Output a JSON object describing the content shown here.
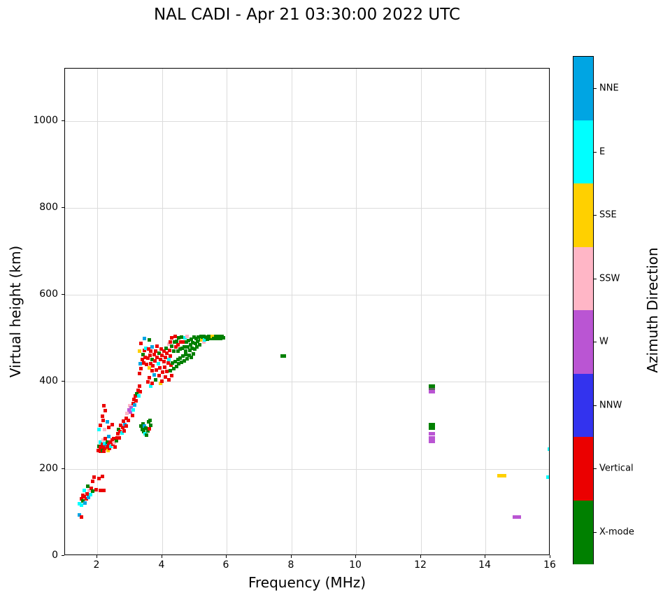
{
  "chart_data": {
    "type": "scatter",
    "title": "NAL CADI - Apr 21 03:30:00 2022 UTC",
    "xlabel": "Frequency (MHz)",
    "ylabel": "Virtual height (km)",
    "xlim": [
      1,
      16
    ],
    "ylim": [
      0,
      1120
    ],
    "xticks": [
      2,
      4,
      6,
      8,
      10,
      12,
      14,
      16
    ],
    "yticks": [
      0,
      200,
      400,
      600,
      800,
      1000
    ],
    "grid": true,
    "marker": "square",
    "colors": {
      "NNE": "#00A5E3",
      "E": "#00FFFF",
      "SSE": "#FFD000",
      "SSW": "#FFB6C6",
      "W": "#BA55D3",
      "NNW": "#3333EE",
      "V": "#EB0000",
      "X": "#008000",
      "GR": "#606060"
    },
    "colorbar": {
      "label": "Azimuth Direction",
      "position": "right",
      "categories": [
        {
          "label": "NNE",
          "key": "NNE",
          "color": "#00A5E3"
        },
        {
          "label": "E",
          "key": "E",
          "color": "#00FFFF"
        },
        {
          "label": "SSE",
          "key": "SSE",
          "color": "#FFD000"
        },
        {
          "label": "SSW",
          "key": "SSW",
          "color": "#FFB6C6"
        },
        {
          "label": "W",
          "key": "W",
          "color": "#BA55D3"
        },
        {
          "label": "NNW",
          "key": "NNW",
          "color": "#3333EE"
        },
        {
          "label": "Vertical",
          "key": "V",
          "color": "#EB0000"
        },
        {
          "label": "X-mode",
          "key": "X",
          "color": "#008000"
        }
      ]
    },
    "points": [
      [
        1.45,
        95,
        "NNE"
      ],
      [
        1.5,
        90,
        "V"
      ],
      [
        1.45,
        120,
        "E"
      ],
      [
        1.5,
        132,
        "V"
      ],
      [
        1.5,
        116,
        "E"
      ],
      [
        1.55,
        140,
        "V"
      ],
      [
        1.55,
        126,
        "X"
      ],
      [
        1.6,
        136,
        "V"
      ],
      [
        1.6,
        150,
        "E"
      ],
      [
        1.62,
        121,
        "NNE"
      ],
      [
        1.65,
        131,
        "V"
      ],
      [
        1.68,
        143,
        "V"
      ],
      [
        1.7,
        160,
        "X"
      ],
      [
        1.72,
        135,
        "NNE"
      ],
      [
        1.75,
        150,
        "SSW"
      ],
      [
        1.78,
        141,
        "E"
      ],
      [
        1.8,
        156,
        "V"
      ],
      [
        1.85,
        149,
        "X"
      ],
      [
        1.85,
        171,
        "V"
      ],
      [
        1.9,
        181,
        "V"
      ],
      [
        1.95,
        152,
        "V"
      ],
      [
        2.05,
        178,
        "V"
      ],
      [
        2.1,
        150,
        "V"
      ],
      [
        2.15,
        183,
        "V"
      ],
      [
        2.2,
        151,
        "V"
      ],
      [
        2.02,
        243,
        "V"
      ],
      [
        2.05,
        252,
        "X"
      ],
      [
        2.08,
        240,
        "V"
      ],
      [
        2.1,
        250,
        "V"
      ],
      [
        2.1,
        262,
        "E"
      ],
      [
        2.12,
        246,
        "V"
      ],
      [
        2.15,
        256,
        "V"
      ],
      [
        2.15,
        243,
        "X"
      ],
      [
        2.18,
        266,
        "SSW"
      ],
      [
        2.2,
        251,
        "V"
      ],
      [
        2.2,
        240,
        "V"
      ],
      [
        2.22,
        259,
        "E"
      ],
      [
        2.25,
        247,
        "V"
      ],
      [
        2.25,
        270,
        "V"
      ],
      [
        2.28,
        254,
        "NNE"
      ],
      [
        2.3,
        250,
        "V"
      ],
      [
        2.3,
        262,
        "X"
      ],
      [
        2.32,
        243,
        "SSE"
      ],
      [
        2.35,
        256,
        "V"
      ],
      [
        2.35,
        274,
        "NNE"
      ],
      [
        2.38,
        247,
        "V"
      ],
      [
        2.4,
        261,
        "V"
      ],
      [
        2.42,
        252,
        "E"
      ],
      [
        2.45,
        266,
        "V"
      ],
      [
        2.48,
        256,
        "V"
      ],
      [
        2.5,
        270,
        "V"
      ],
      [
        2.52,
        260,
        "SSW"
      ],
      [
        2.55,
        251,
        "V"
      ],
      [
        2.58,
        265,
        "X"
      ],
      [
        2.6,
        272,
        "V"
      ],
      [
        2.05,
        291,
        "E"
      ],
      [
        2.1,
        301,
        "V"
      ],
      [
        2.15,
        321,
        "V"
      ],
      [
        2.18,
        312,
        "V"
      ],
      [
        2.2,
        345,
        "V"
      ],
      [
        2.22,
        291,
        "SSW"
      ],
      [
        2.25,
        334,
        "V"
      ],
      [
        2.3,
        309,
        "NNE"
      ],
      [
        2.35,
        296,
        "V"
      ],
      [
        2.45,
        302,
        "V"
      ],
      [
        2.62,
        281,
        "V"
      ],
      [
        2.65,
        291,
        "X"
      ],
      [
        2.68,
        272,
        "V"
      ],
      [
        2.7,
        286,
        "V"
      ],
      [
        2.72,
        300,
        "V"
      ],
      [
        2.75,
        282,
        "E"
      ],
      [
        2.78,
        295,
        "V"
      ],
      [
        2.8,
        310,
        "V"
      ],
      [
        2.82,
        288,
        "V"
      ],
      [
        2.85,
        302,
        "NNE"
      ],
      [
        2.88,
        316,
        "V"
      ],
      [
        2.9,
        298,
        "V"
      ],
      [
        2.92,
        327,
        "SSW"
      ],
      [
        2.95,
        312,
        "V"
      ],
      [
        2.98,
        335,
        "W"
      ],
      [
        3.0,
        345,
        "SSW"
      ],
      [
        3.02,
        330,
        "W"
      ],
      [
        3.05,
        341,
        "W"
      ],
      [
        3.08,
        322,
        "V"
      ],
      [
        3.1,
        350,
        "V"
      ],
      [
        3.1,
        336,
        "E"
      ],
      [
        3.12,
        360,
        "V"
      ],
      [
        3.15,
        347,
        "NNE"
      ],
      [
        3.18,
        368,
        "V"
      ],
      [
        3.2,
        356,
        "V"
      ],
      [
        3.22,
        372,
        "X"
      ],
      [
        3.25,
        381,
        "V"
      ],
      [
        3.28,
        367,
        "E"
      ],
      [
        3.3,
        390,
        "V"
      ],
      [
        3.32,
        377,
        "V"
      ],
      [
        3.35,
        298,
        "X"
      ],
      [
        3.38,
        290,
        "X"
      ],
      [
        3.4,
        304,
        "X"
      ],
      [
        3.42,
        286,
        "X"
      ],
      [
        3.45,
        298,
        "NNE"
      ],
      [
        3.48,
        281,
        "E"
      ],
      [
        3.5,
        293,
        "X"
      ],
      [
        3.52,
        277,
        "X"
      ],
      [
        3.55,
        288,
        "X"
      ],
      [
        3.58,
        308,
        "X"
      ],
      [
        3.6,
        292,
        "V"
      ],
      [
        3.62,
        312,
        "X"
      ],
      [
        3.65,
        300,
        "X"
      ],
      [
        3.3,
        420,
        "V"
      ],
      [
        3.32,
        441,
        "NNE"
      ],
      [
        3.35,
        430,
        "V"
      ],
      [
        3.38,
        452,
        "V"
      ],
      [
        3.4,
        463,
        "X"
      ],
      [
        3.42,
        444,
        "V"
      ],
      [
        3.45,
        500,
        "NNE"
      ],
      [
        3.45,
        472,
        "V"
      ],
      [
        3.48,
        457,
        "V"
      ],
      [
        3.5,
        478,
        "E"
      ],
      [
        3.3,
        470,
        "SSE"
      ],
      [
        3.35,
        488,
        "V"
      ],
      [
        3.52,
        440,
        "V"
      ],
      [
        3.55,
        400,
        "V"
      ],
      [
        3.55,
        455,
        "V"
      ],
      [
        3.58,
        475,
        "V"
      ],
      [
        3.6,
        410,
        "V"
      ],
      [
        3.6,
        432,
        "SSE"
      ],
      [
        3.6,
        497,
        "X"
      ],
      [
        3.62,
        461,
        "V"
      ],
      [
        3.65,
        390,
        "E"
      ],
      [
        3.65,
        442,
        "V"
      ],
      [
        3.65,
        470,
        "V"
      ],
      [
        3.68,
        425,
        "V"
      ],
      [
        3.7,
        396,
        "V"
      ],
      [
        3.7,
        452,
        "X"
      ],
      [
        3.7,
        481,
        "NNE"
      ],
      [
        3.72,
        437,
        "V"
      ],
      [
        3.75,
        416,
        "NNE"
      ],
      [
        3.75,
        462,
        "V"
      ],
      [
        3.78,
        448,
        "V"
      ],
      [
        3.8,
        405,
        "X"
      ],
      [
        3.8,
        470,
        "V"
      ],
      [
        3.82,
        428,
        "V"
      ],
      [
        3.85,
        456,
        "V"
      ],
      [
        3.85,
        482,
        "V"
      ],
      [
        3.88,
        441,
        "E"
      ],
      [
        3.9,
        415,
        "V"
      ],
      [
        3.9,
        466,
        "X"
      ],
      [
        3.92,
        432,
        "V"
      ],
      [
        3.95,
        396,
        "SSE"
      ],
      [
        3.95,
        451,
        "V"
      ],
      [
        3.98,
        476,
        "V"
      ],
      [
        4.0,
        402,
        "V"
      ],
      [
        4.0,
        461,
        "V"
      ],
      [
        4.02,
        422,
        "V"
      ],
      [
        4.05,
        446,
        "V"
      ],
      [
        4.05,
        471,
        "V"
      ],
      [
        4.08,
        433,
        "V"
      ],
      [
        4.1,
        412,
        "V"
      ],
      [
        4.1,
        457,
        "V"
      ],
      [
        4.12,
        478,
        "X"
      ],
      [
        4.15,
        424,
        "V"
      ],
      [
        4.15,
        466,
        "V"
      ],
      [
        4.18,
        444,
        "V"
      ],
      [
        4.2,
        404,
        "V"
      ],
      [
        4.2,
        452,
        "E"
      ],
      [
        4.22,
        472,
        "V"
      ],
      [
        4.25,
        426,
        "X"
      ],
      [
        4.25,
        460,
        "V"
      ],
      [
        4.28,
        438,
        "V"
      ],
      [
        4.3,
        415,
        "V"
      ],
      [
        4.2,
        487,
        "SSW"
      ],
      [
        4.25,
        492,
        "V"
      ],
      [
        4.3,
        482,
        "X"
      ],
      [
        4.3,
        501,
        "V"
      ],
      [
        4.35,
        471,
        "X"
      ],
      [
        4.38,
        492,
        "X"
      ],
      [
        4.4,
        505,
        "V"
      ],
      [
        4.42,
        481,
        "V"
      ],
      [
        4.45,
        494,
        "X"
      ],
      [
        4.48,
        470,
        "X"
      ],
      [
        4.5,
        486,
        "V"
      ],
      [
        4.52,
        502,
        "X"
      ],
      [
        4.55,
        476,
        "X"
      ],
      [
        4.58,
        491,
        "V"
      ],
      [
        4.6,
        503,
        "X"
      ],
      [
        4.62,
        478,
        "X"
      ],
      [
        4.65,
        492,
        "V"
      ],
      [
        4.68,
        481,
        "X"
      ],
      [
        4.7,
        501,
        "E"
      ],
      [
        4.72,
        470,
        "X"
      ],
      [
        4.75,
        491,
        "X"
      ],
      [
        4.78,
        505,
        "SSW"
      ],
      [
        4.8,
        481,
        "X"
      ],
      [
        4.82,
        495,
        "X"
      ],
      [
        4.85,
        472,
        "X"
      ],
      [
        4.88,
        486,
        "X"
      ],
      [
        4.9,
        498,
        "X"
      ],
      [
        4.92,
        477,
        "X"
      ],
      [
        4.95,
        490,
        "X"
      ],
      [
        4.98,
        503,
        "X"
      ],
      [
        5.0,
        476,
        "X"
      ],
      [
        5.02,
        489,
        "X"
      ],
      [
        5.05,
        500,
        "X"
      ],
      [
        5.08,
        481,
        "X"
      ],
      [
        5.1,
        493,
        "X"
      ],
      [
        5.12,
        503,
        "X"
      ],
      [
        5.15,
        485,
        "X"
      ],
      [
        5.18,
        496,
        "X"
      ],
      [
        4.32,
        443,
        "X"
      ],
      [
        4.36,
        431,
        "X"
      ],
      [
        4.4,
        447,
        "X"
      ],
      [
        4.44,
        436,
        "X"
      ],
      [
        4.48,
        451,
        "X"
      ],
      [
        4.52,
        441,
        "X"
      ],
      [
        4.56,
        455,
        "X"
      ],
      [
        4.6,
        445,
        "X"
      ],
      [
        4.64,
        459,
        "X"
      ],
      [
        4.68,
        449,
        "X"
      ],
      [
        4.72,
        462,
        "X"
      ],
      [
        4.78,
        453,
        "X"
      ],
      [
        4.84,
        461,
        "X"
      ],
      [
        4.9,
        456,
        "X"
      ],
      [
        4.96,
        464,
        "X"
      ],
      [
        5.2,
        505,
        "X"
      ],
      [
        5.22,
        496,
        "SSE"
      ],
      [
        5.25,
        503,
        "X"
      ],
      [
        5.28,
        491,
        "SSW"
      ],
      [
        5.3,
        505,
        "X"
      ],
      [
        5.32,
        497,
        "E"
      ],
      [
        5.35,
        503,
        "X"
      ],
      [
        5.4,
        498,
        "X"
      ],
      [
        5.45,
        505,
        "X"
      ],
      [
        5.5,
        499,
        "X"
      ],
      [
        5.55,
        504,
        "SSE"
      ],
      [
        5.6,
        500,
        "X"
      ],
      [
        5.65,
        505,
        "X"
      ],
      [
        5.7,
        499,
        "X"
      ],
      [
        5.75,
        504,
        "X"
      ],
      [
        5.8,
        500,
        "X"
      ],
      [
        5.85,
        505,
        "X"
      ],
      [
        5.9,
        502,
        "X"
      ],
      [
        7.72,
        460,
        "X"
      ],
      [
        7.78,
        460,
        "X"
      ],
      [
        12.3,
        391,
        "X"
      ],
      [
        12.38,
        391,
        "X"
      ],
      [
        12.3,
        383,
        "GR"
      ],
      [
        12.38,
        383,
        "GR"
      ],
      [
        12.3,
        377,
        "W"
      ],
      [
        12.38,
        377,
        "W"
      ],
      [
        12.3,
        302,
        "X"
      ],
      [
        12.38,
        302,
        "X"
      ],
      [
        12.3,
        293,
        "X"
      ],
      [
        12.38,
        293,
        "X"
      ],
      [
        12.3,
        281,
        "W"
      ],
      [
        12.38,
        281,
        "W"
      ],
      [
        12.3,
        272,
        "W"
      ],
      [
        12.38,
        272,
        "W"
      ],
      [
        12.3,
        263,
        "W"
      ],
      [
        12.38,
        263,
        "W"
      ],
      [
        14.42,
        185,
        "SSE"
      ],
      [
        14.5,
        185,
        "SSE"
      ],
      [
        14.58,
        185,
        "SSE"
      ],
      [
        14.88,
        90,
        "W"
      ],
      [
        14.96,
        90,
        "W"
      ],
      [
        15.04,
        90,
        "W"
      ],
      [
        15.97,
        245,
        "E"
      ],
      [
        16.0,
        245,
        "E"
      ],
      [
        15.93,
        181,
        "E"
      ]
    ]
  }
}
